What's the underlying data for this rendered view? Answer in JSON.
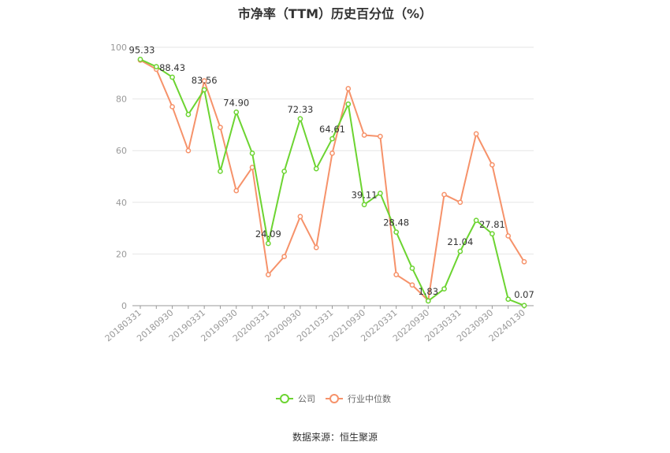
{
  "title": "市净率（TTM）历史百分位（%）",
  "source": "数据来源：恒生聚源",
  "colors": {
    "company": "#6cd431",
    "industry": "#f6926a",
    "grid": "#e6e6e6",
    "axis": "#999999"
  },
  "chart_data": {
    "type": "line",
    "title": "市净率（TTM）历史百分位（%）",
    "ylim": [
      0,
      100
    ],
    "y_ticks": [
      0,
      20,
      40,
      60,
      80,
      100
    ],
    "grid": true,
    "legend_position": "bottom",
    "x_tick_labels": [
      "20180331",
      "20180930",
      "20190331",
      "20190930",
      "20200331",
      "20200930",
      "20210331",
      "20210930",
      "20220331",
      "20220930",
      "20230331",
      "20230930",
      "20240130"
    ],
    "x": [
      "20180331",
      "20180630",
      "20180930",
      "20181231",
      "20190331",
      "20190630",
      "20190930",
      "20191231",
      "20200331",
      "20200630",
      "20200930",
      "20201231",
      "20210331",
      "20210630",
      "20210930",
      "20211231",
      "20220331",
      "20220630",
      "20220930",
      "20221231",
      "20230331",
      "20230630",
      "20230930",
      "20231231",
      "20240130"
    ],
    "series": [
      {
        "name": "公司",
        "values": [
          95.33,
          92.5,
          88.43,
          74.0,
          83.56,
          52.0,
          74.9,
          59.0,
          24.09,
          52.0,
          72.33,
          53.0,
          64.61,
          78.0,
          39.11,
          43.5,
          28.48,
          14.5,
          1.83,
          6.5,
          21.04,
          33.0,
          27.81,
          2.5,
          0.07
        ]
      },
      {
        "name": "行业中位数",
        "values": [
          95.0,
          91.5,
          77.0,
          60.0,
          87.0,
          69.0,
          44.5,
          53.5,
          12.0,
          19.0,
          34.5,
          22.5,
          59.0,
          84.0,
          66.0,
          65.5,
          12.0,
          8.0,
          2.0,
          43.0,
          40.0,
          66.5,
          54.5,
          27.0,
          17.0
        ]
      }
    ],
    "data_labels": [
      {
        "series": 0,
        "index": 0,
        "text": "95.33"
      },
      {
        "series": 0,
        "index": 2,
        "text": "88.43"
      },
      {
        "series": 0,
        "index": 4,
        "text": "83.56"
      },
      {
        "series": 0,
        "index": 6,
        "text": "74.90"
      },
      {
        "series": 0,
        "index": 8,
        "text": "24.09"
      },
      {
        "series": 0,
        "index": 10,
        "text": "72.33"
      },
      {
        "series": 0,
        "index": 12,
        "text": "64.61"
      },
      {
        "series": 0,
        "index": 14,
        "text": "39.11"
      },
      {
        "series": 0,
        "index": 16,
        "text": "28.48"
      },
      {
        "series": 0,
        "index": 18,
        "text": "1.83"
      },
      {
        "series": 0,
        "index": 20,
        "text": "21.04"
      },
      {
        "series": 0,
        "index": 22,
        "text": "27.81"
      },
      {
        "series": 0,
        "index": 24,
        "text": "0.07"
      }
    ]
  }
}
